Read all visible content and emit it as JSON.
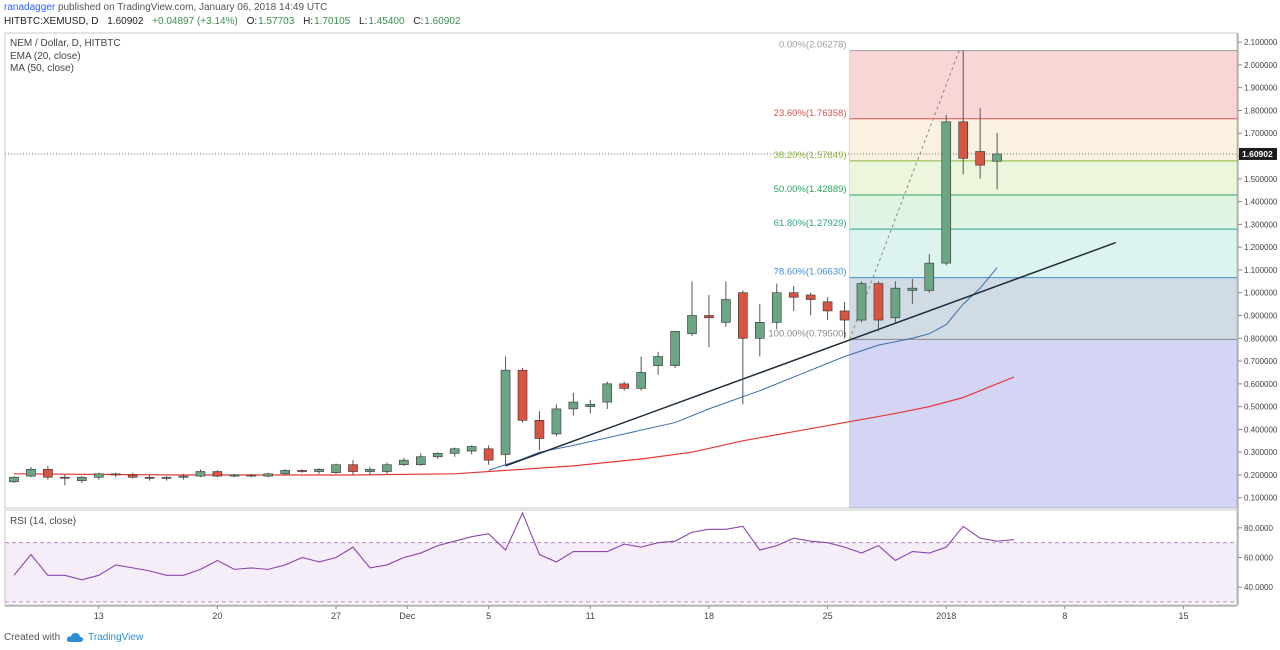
{
  "header": {
    "author": "ranadagger",
    "published_text": "published on TradingView.com, January 06, 2018 14:49 UTC",
    "symbol": "HITBTC:XEMUSD, D",
    "last": "1.60902",
    "change": "+0.04897 (+3.14%)",
    "open_label": "O:",
    "open": "1.57703",
    "high_label": "H:",
    "high": "1.70105",
    "low_label": "L:",
    "low": "1.45400",
    "close_label": "C:",
    "close": "1.60902"
  },
  "legend": {
    "title": "NEM / Dollar, D, HITBTC",
    "ema": "EMA (20, close)",
    "ma": "MA (50, close)",
    "rsi": "RSI (14, close)"
  },
  "price_tag": "1.60902",
  "footer": {
    "created_with": "Created with",
    "brand": "TradingView"
  },
  "colors": {
    "up": "#6ba583",
    "down": "#d75442",
    "ema": "#3a6fa8",
    "ma": "#e53935",
    "trendline": "#1f2d3d",
    "rsi": "#8e44ad",
    "price_tag": "#1e1e1e"
  },
  "chart_data": [
    {
      "type": "candlestick",
      "title": "NEM / Dollar, D, HITBTC",
      "x_tick_labels": [
        "13",
        "20",
        "27",
        "Dec",
        "5",
        "11",
        "18",
        "25",
        "2018",
        "8",
        "15"
      ],
      "y_ticks": [
        "0.100000",
        "0.200000",
        "0.300000",
        "0.400000",
        "0.500000",
        "0.600000",
        "0.700000",
        "0.800000",
        "0.900000",
        "1.000000",
        "1.100000",
        "1.200000",
        "1.300000",
        "1.400000",
        "1.500000",
        "1.600000",
        "1.700000",
        "1.800000",
        "1.900000",
        "2.000000",
        "2.100000"
      ],
      "ylim": [
        0.055,
        2.14
      ],
      "last_price": 1.60902,
      "candles": [
        {
          "o": 0.17,
          "h": 0.195,
          "l": 0.165,
          "c": 0.19
        },
        {
          "o": 0.195,
          "h": 0.235,
          "l": 0.19,
          "c": 0.225
        },
        {
          "o": 0.225,
          "h": 0.24,
          "l": 0.18,
          "c": 0.19
        },
        {
          "o": 0.19,
          "h": 0.205,
          "l": 0.155,
          "c": 0.188
        },
        {
          "o": 0.175,
          "h": 0.195,
          "l": 0.165,
          "c": 0.19
        },
        {
          "o": 0.19,
          "h": 0.21,
          "l": 0.18,
          "c": 0.205
        },
        {
          "o": 0.205,
          "h": 0.21,
          "l": 0.19,
          "c": 0.2
        },
        {
          "o": 0.2,
          "h": 0.21,
          "l": 0.185,
          "c": 0.19
        },
        {
          "o": 0.19,
          "h": 0.2,
          "l": 0.175,
          "c": 0.185
        },
        {
          "o": 0.185,
          "h": 0.195,
          "l": 0.175,
          "c": 0.19
        },
        {
          "o": 0.19,
          "h": 0.205,
          "l": 0.18,
          "c": 0.195
        },
        {
          "o": 0.195,
          "h": 0.225,
          "l": 0.19,
          "c": 0.215
        },
        {
          "o": 0.215,
          "h": 0.22,
          "l": 0.19,
          "c": 0.195
        },
        {
          "o": 0.195,
          "h": 0.205,
          "l": 0.19,
          "c": 0.2
        },
        {
          "o": 0.2,
          "h": 0.205,
          "l": 0.19,
          "c": 0.195
        },
        {
          "o": 0.195,
          "h": 0.21,
          "l": 0.19,
          "c": 0.205
        },
        {
          "o": 0.205,
          "h": 0.225,
          "l": 0.2,
          "c": 0.22
        },
        {
          "o": 0.22,
          "h": 0.225,
          "l": 0.21,
          "c": 0.215
        },
        {
          "o": 0.215,
          "h": 0.23,
          "l": 0.205,
          "c": 0.225
        },
        {
          "o": 0.21,
          "h": 0.25,
          "l": 0.205,
          "c": 0.245
        },
        {
          "o": 0.245,
          "h": 0.265,
          "l": 0.2,
          "c": 0.215
        },
        {
          "o": 0.215,
          "h": 0.235,
          "l": 0.2,
          "c": 0.225
        },
        {
          "o": 0.215,
          "h": 0.255,
          "l": 0.205,
          "c": 0.245
        },
        {
          "o": 0.245,
          "h": 0.275,
          "l": 0.24,
          "c": 0.265
        },
        {
          "o": 0.245,
          "h": 0.295,
          "l": 0.24,
          "c": 0.28
        },
        {
          "o": 0.28,
          "h": 0.3,
          "l": 0.27,
          "c": 0.295
        },
        {
          "o": 0.295,
          "h": 0.32,
          "l": 0.28,
          "c": 0.315
        },
        {
          "o": 0.305,
          "h": 0.33,
          "l": 0.29,
          "c": 0.325
        },
        {
          "o": 0.315,
          "h": 0.33,
          "l": 0.245,
          "c": 0.265
        },
        {
          "o": 0.29,
          "h": 0.72,
          "l": 0.24,
          "c": 0.66
        },
        {
          "o": 0.66,
          "h": 0.67,
          "l": 0.43,
          "c": 0.44
        },
        {
          "o": 0.44,
          "h": 0.48,
          "l": 0.31,
          "c": 0.36
        },
        {
          "o": 0.38,
          "h": 0.51,
          "l": 0.37,
          "c": 0.49
        },
        {
          "o": 0.49,
          "h": 0.56,
          "l": 0.46,
          "c": 0.52
        },
        {
          "o": 0.5,
          "h": 0.53,
          "l": 0.47,
          "c": 0.51
        },
        {
          "o": 0.52,
          "h": 0.61,
          "l": 0.49,
          "c": 0.6
        },
        {
          "o": 0.6,
          "h": 0.61,
          "l": 0.57,
          "c": 0.58
        },
        {
          "o": 0.58,
          "h": 0.72,
          "l": 0.57,
          "c": 0.65
        },
        {
          "o": 0.68,
          "h": 0.74,
          "l": 0.64,
          "c": 0.72
        },
        {
          "o": 0.68,
          "h": 0.83,
          "l": 0.67,
          "c": 0.83
        },
        {
          "o": 0.82,
          "h": 1.05,
          "l": 0.81,
          "c": 0.9
        },
        {
          "o": 0.9,
          "h": 0.99,
          "l": 0.76,
          "c": 0.89
        },
        {
          "o": 0.87,
          "h": 1.05,
          "l": 0.85,
          "c": 0.97
        },
        {
          "o": 1.0,
          "h": 1.01,
          "l": 0.51,
          "c": 0.8
        },
        {
          "o": 0.8,
          "h": 0.95,
          "l": 0.72,
          "c": 0.87
        },
        {
          "o": 0.87,
          "h": 1.04,
          "l": 0.84,
          "c": 1.0
        },
        {
          "o": 1.0,
          "h": 1.03,
          "l": 0.92,
          "c": 0.98
        },
        {
          "o": 0.99,
          "h": 1.0,
          "l": 0.9,
          "c": 0.97
        },
        {
          "o": 0.96,
          "h": 0.98,
          "l": 0.88,
          "c": 0.92
        },
        {
          "o": 0.92,
          "h": 0.96,
          "l": 0.8,
          "c": 0.88
        },
        {
          "o": 0.88,
          "h": 1.05,
          "l": 0.87,
          "c": 1.04
        },
        {
          "o": 1.04,
          "h": 1.05,
          "l": 0.83,
          "c": 0.88
        },
        {
          "o": 0.89,
          "h": 1.05,
          "l": 0.87,
          "c": 1.02
        },
        {
          "o": 1.01,
          "h": 1.06,
          "l": 0.95,
          "c": 1.02
        },
        {
          "o": 1.01,
          "h": 1.17,
          "l": 1.0,
          "c": 1.13
        },
        {
          "o": 1.13,
          "h": 1.78,
          "l": 1.12,
          "c": 1.75
        },
        {
          "o": 1.75,
          "h": 2.063,
          "l": 1.52,
          "c": 1.59
        },
        {
          "o": 1.62,
          "h": 1.81,
          "l": 1.5,
          "c": 1.56
        },
        {
          "o": 1.577,
          "h": 1.701,
          "l": 1.454,
          "c": 1.609
        }
      ],
      "ema_20": [
        [
          28,
          0.22
        ],
        [
          30,
          0.27
        ],
        [
          31,
          0.3
        ],
        [
          33,
          0.33
        ],
        [
          36,
          0.38
        ],
        [
          39,
          0.43
        ],
        [
          41,
          0.49
        ],
        [
          44,
          0.57
        ],
        [
          47,
          0.66
        ],
        [
          49,
          0.72
        ],
        [
          51,
          0.77
        ],
        [
          53,
          0.8
        ],
        [
          54,
          0.82
        ],
        [
          55,
          0.86
        ],
        [
          56,
          0.95
        ],
        [
          57,
          1.02
        ],
        [
          58,
          1.11
        ]
      ],
      "ma_50": [
        [
          0,
          0.205
        ],
        [
          10,
          0.2
        ],
        [
          20,
          0.2
        ],
        [
          26,
          0.205
        ],
        [
          29,
          0.22
        ],
        [
          33,
          0.24
        ],
        [
          37,
          0.27
        ],
        [
          40,
          0.3
        ],
        [
          43,
          0.35
        ],
        [
          46,
          0.39
        ],
        [
          49,
          0.43
        ],
        [
          52,
          0.47
        ],
        [
          54,
          0.5
        ],
        [
          56,
          0.54
        ],
        [
          58,
          0.6
        ],
        [
          59,
          0.63
        ]
      ],
      "trendline": [
        [
          29,
          0.24
        ],
        [
          65,
          1.22
        ]
      ],
      "fibonacci": {
        "levels": [
          {
            "ratio": "0.00%",
            "price": "2.06278",
            "value": 2.06278,
            "color": "#9e9e9e"
          },
          {
            "ratio": "23.60%",
            "price": "1.76358",
            "value": 1.76358,
            "color": "#d9534f"
          },
          {
            "ratio": "38.20%",
            "price": "1.57849",
            "value": 1.57849,
            "color": "#8ab83c"
          },
          {
            "ratio": "50.00%",
            "price": "1.42889",
            "value": 1.42889,
            "color": "#2ca35a"
          },
          {
            "ratio": "61.80%",
            "price": "1.27929",
            "value": 1.27929,
            "color": "#2ca38c"
          },
          {
            "ratio": "78.60%",
            "price": "1.06630",
            "value": 1.0663,
            "color": "#3f8fd8"
          },
          {
            "ratio": "100.00%",
            "price": "0.79500",
            "value": 0.795,
            "color": "#8a8a8a"
          }
        ],
        "start_index": 49
      }
    },
    {
      "type": "line",
      "title": "RSI (14, close)",
      "y_ticks": [
        "40.0000",
        "60.0000",
        "80.0000"
      ],
      "ylim": [
        28,
        92
      ],
      "band": [
        30,
        70
      ],
      "values": [
        [
          0,
          48
        ],
        [
          1,
          62
        ],
        [
          2,
          48
        ],
        [
          3,
          48
        ],
        [
          4,
          45
        ],
        [
          5,
          48
        ],
        [
          6,
          55
        ],
        [
          7,
          53
        ],
        [
          8,
          51
        ],
        [
          9,
          48
        ],
        [
          10,
          48
        ],
        [
          11,
          52
        ],
        [
          12,
          58
        ],
        [
          13,
          52
        ],
        [
          14,
          53
        ],
        [
          15,
          52
        ],
        [
          16,
          55
        ],
        [
          17,
          60
        ],
        [
          18,
          57
        ],
        [
          19,
          60
        ],
        [
          20,
          67
        ],
        [
          21,
          53
        ],
        [
          22,
          55
        ],
        [
          23,
          60
        ],
        [
          24,
          63
        ],
        [
          25,
          68
        ],
        [
          26,
          71
        ],
        [
          27,
          74
        ],
        [
          28,
          76
        ],
        [
          29,
          65
        ],
        [
          30,
          90
        ],
        [
          31,
          62
        ],
        [
          32,
          57
        ],
        [
          33,
          64
        ],
        [
          34,
          64
        ],
        [
          35,
          64
        ],
        [
          36,
          69
        ],
        [
          37,
          67
        ],
        [
          38,
          70
        ],
        [
          39,
          71
        ],
        [
          40,
          77
        ],
        [
          41,
          79
        ],
        [
          42,
          79
        ],
        [
          43,
          81
        ],
        [
          44,
          65
        ],
        [
          45,
          68
        ],
        [
          46,
          73
        ],
        [
          47,
          71
        ],
        [
          48,
          70
        ],
        [
          49,
          67
        ],
        [
          50,
          63
        ],
        [
          51,
          68
        ],
        [
          52,
          58
        ],
        [
          53,
          64
        ],
        [
          54,
          63
        ],
        [
          55,
          67
        ],
        [
          56,
          81
        ],
        [
          57,
          73
        ],
        [
          58,
          71
        ],
        [
          59,
          72
        ]
      ]
    }
  ]
}
